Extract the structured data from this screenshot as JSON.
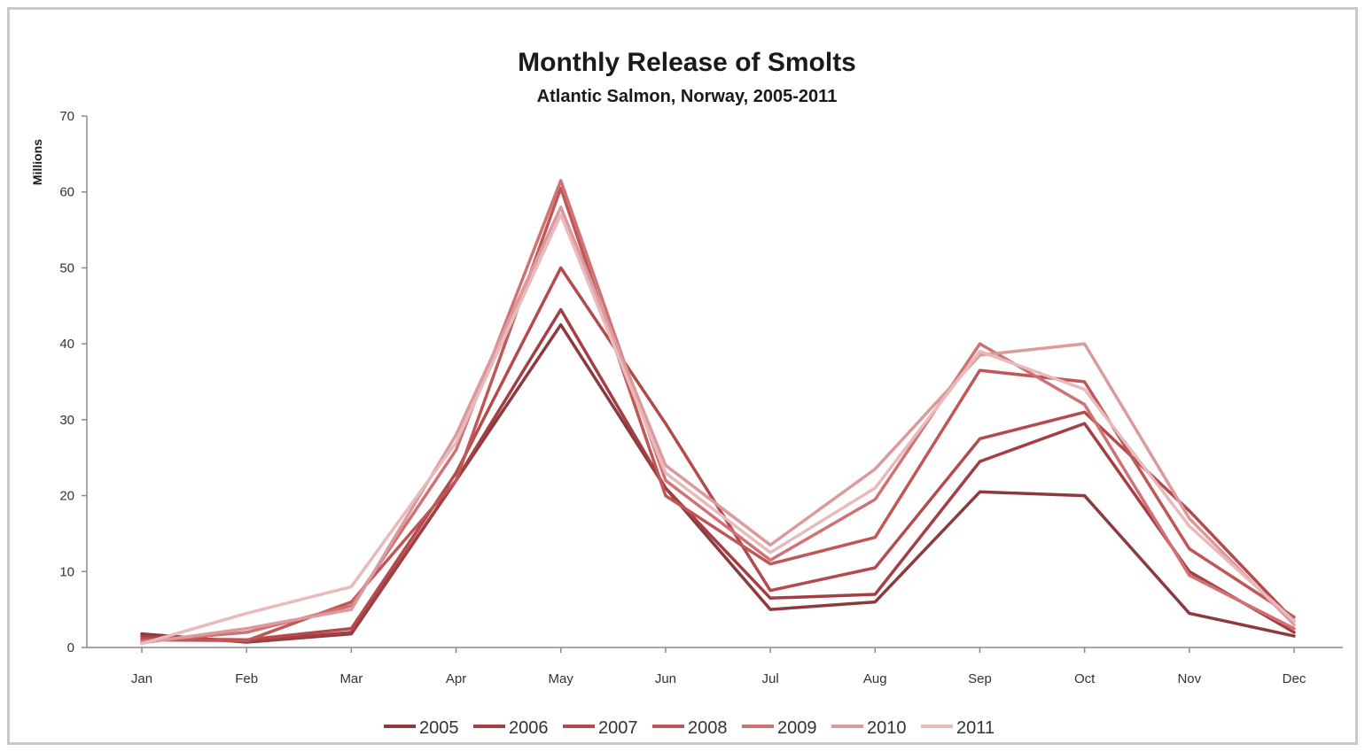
{
  "chart_data": {
    "type": "line",
    "title": "Monthly Release of Smolts",
    "subtitle": "Atlantic Salmon, Norway, 2005-2011",
    "xlabel": "",
    "ylabel": "Millions",
    "ylim": [
      0,
      70
    ],
    "yticks": [
      0,
      10,
      20,
      30,
      40,
      50,
      60,
      70
    ],
    "grid": false,
    "legend_position": "bottom",
    "categories": [
      "Jan",
      "Feb",
      "Mar",
      "Apr",
      "May",
      "Jun",
      "Jul",
      "Aug",
      "Sep",
      "Oct",
      "Nov",
      "Dec"
    ],
    "series": [
      {
        "name": "2005",
        "color": "#8b3a3e",
        "values": [
          1.8,
          0.7,
          1.8,
          22,
          42.5,
          21,
          5,
          6,
          20.5,
          20,
          4.5,
          1.5
        ]
      },
      {
        "name": "2006",
        "color": "#a33f43",
        "values": [
          1.5,
          0.8,
          2.0,
          22,
          44.5,
          21,
          6.5,
          7,
          24.5,
          29.5,
          10,
          2.0
        ]
      },
      {
        "name": "2007",
        "color": "#b44a4c",
        "values": [
          1.2,
          1.0,
          2.5,
          23,
          50,
          29.5,
          7.5,
          10.5,
          27.5,
          31,
          18,
          3.5
        ]
      },
      {
        "name": "2008",
        "color": "#c05656",
        "values": [
          1.0,
          0.9,
          6.0,
          22,
          60.5,
          20,
          11,
          14.5,
          36.5,
          35,
          13,
          4.0
        ]
      },
      {
        "name": "2009",
        "color": "#d07274",
        "values": [
          0.8,
          2.0,
          5.5,
          26,
          61.5,
          22,
          11.5,
          19.5,
          40,
          32,
          9.5,
          2.5
        ]
      },
      {
        "name": "2010",
        "color": "#dc9a9c",
        "values": [
          0.6,
          2.5,
          5.0,
          28,
          58,
          24,
          13.5,
          23.5,
          38.5,
          40,
          17,
          3.0
        ]
      },
      {
        "name": "2011",
        "color": "#e8babc",
        "values": [
          0.5,
          4.5,
          8.0,
          27,
          57,
          23,
          12.5,
          21,
          39,
          34,
          16,
          3.5
        ]
      }
    ]
  }
}
